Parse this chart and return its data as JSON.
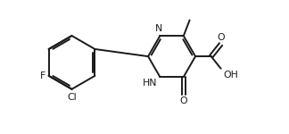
{
  "bg_color": "#ffffff",
  "line_color": "#1a1a1a",
  "line_width": 1.4,
  "font_size": 7.8,
  "figsize": [
    3.24,
    1.5
  ],
  "dpi": 100,
  "xlim": [
    0,
    9.5
  ],
  "ylim": [
    0,
    4.2
  ]
}
